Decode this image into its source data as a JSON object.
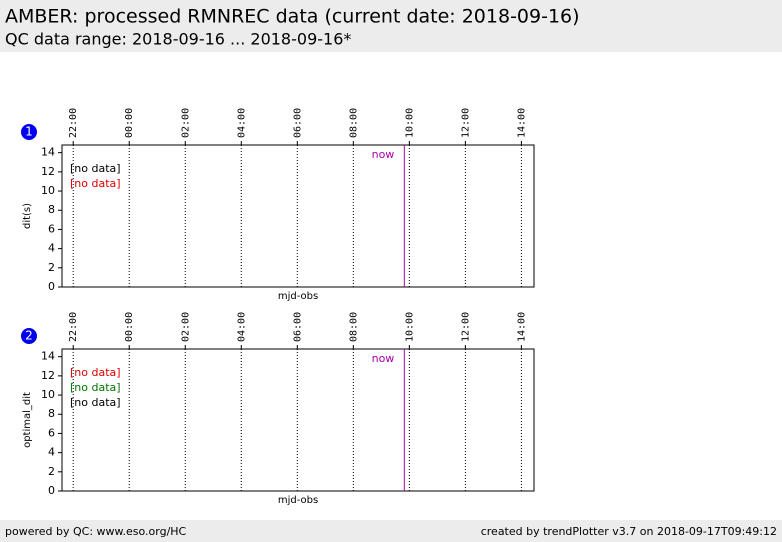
{
  "header": {
    "title": "AMBER: processed RMNREC data (current date: 2018-09-16)",
    "subtitle": "QC data range: 2018-09-16 ... 2018-09-16*"
  },
  "chart_data": [
    {
      "type": "line",
      "panel": "1",
      "ylabel": "dit(s)",
      "xlabel": "mjd-obs",
      "xlim": [
        21.6,
        38.45
      ],
      "ylim": [
        0,
        14.8
      ],
      "xticks": [
        {
          "value": 22,
          "label": "22:00"
        },
        {
          "value": 24,
          "label": "00:00"
        },
        {
          "value": 26,
          "label": "02:00"
        },
        {
          "value": 28,
          "label": "04:00"
        },
        {
          "value": 30,
          "label": "06:00"
        },
        {
          "value": 32,
          "label": "08:00"
        },
        {
          "value": 34,
          "label": "10:00"
        },
        {
          "value": 36,
          "label": "12:00"
        },
        {
          "value": 38,
          "label": "14:00"
        }
      ],
      "yticks": [
        0,
        2,
        4,
        6,
        8,
        10,
        12,
        14
      ],
      "grid": true,
      "annotation": {
        "text": "now",
        "x": 33.82,
        "color": "#aa00aa"
      },
      "series": [
        {
          "name": "[no data]",
          "color": "#000000",
          "values": []
        },
        {
          "name": "[no data]",
          "color": "#dd0000",
          "values": []
        }
      ]
    },
    {
      "type": "line",
      "panel": "2",
      "ylabel": "optimal_dit",
      "xlabel": "mjd-obs",
      "xlim": [
        21.6,
        38.45
      ],
      "ylim": [
        0,
        14.8
      ],
      "xticks": [
        {
          "value": 22,
          "label": "22:00"
        },
        {
          "value": 24,
          "label": "00:00"
        },
        {
          "value": 26,
          "label": "02:00"
        },
        {
          "value": 28,
          "label": "04:00"
        },
        {
          "value": 30,
          "label": "06:00"
        },
        {
          "value": 32,
          "label": "08:00"
        },
        {
          "value": 34,
          "label": "10:00"
        },
        {
          "value": 36,
          "label": "12:00"
        },
        {
          "value": 38,
          "label": "14:00"
        }
      ],
      "yticks": [
        0,
        2,
        4,
        6,
        8,
        10,
        12,
        14
      ],
      "grid": true,
      "annotation": {
        "text": "now",
        "x": 33.82,
        "color": "#aa00aa"
      },
      "series": [
        {
          "name": "[no data]",
          "color": "#dd0000",
          "values": []
        },
        {
          "name": "[no data]",
          "color": "#007700",
          "values": []
        },
        {
          "name": "[no data]",
          "color": "#000000",
          "values": []
        }
      ]
    }
  ],
  "footer": {
    "left": "powered by QC: www.eso.org/HC",
    "right": "created by trendPlotter v3.7 on 2018-09-17T09:49:12"
  }
}
